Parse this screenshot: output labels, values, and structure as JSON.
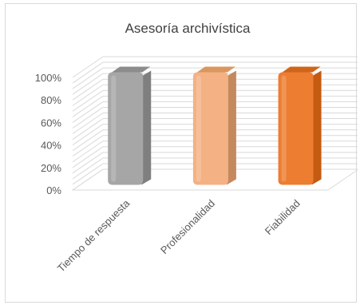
{
  "chart_data": {
    "type": "bar",
    "title": "Asesoría archivística",
    "categories": [
      "Tiempo de respuesta",
      "Profesionalidad",
      "Fiabilidad"
    ],
    "values": [
      100,
      100,
      100
    ],
    "unit": "%",
    "ylim": [
      0,
      100
    ],
    "yticks": [
      "0%",
      "20%",
      "40%",
      "60%",
      "80%",
      "100%"
    ],
    "grid": true,
    "legend": "none",
    "colors": {
      "bar_front": [
        "#a6a6a6",
        "#f4b183",
        "#ed7d31"
      ],
      "bar_side": [
        "#7f7f7f",
        "#c5895e",
        "#c55a11"
      ],
      "bar_top": [
        "#8c8c8c",
        "#d9975f",
        "#d0651a"
      ],
      "gridline": "#d9d9d9",
      "text": "#595959"
    }
  }
}
